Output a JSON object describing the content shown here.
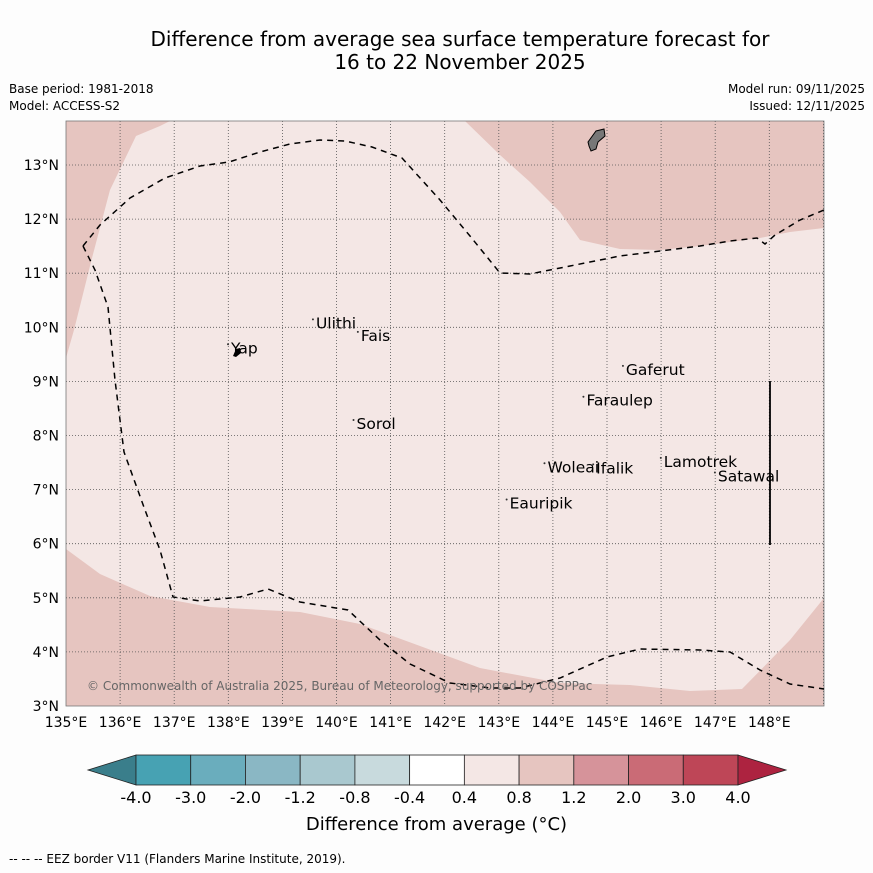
{
  "header": {
    "title_line1": "Difference from average sea surface temperature forecast for",
    "title_line2": "16 to 22 November 2025",
    "base_period": "Base period: 1981-2018",
    "model": "Model: ACCESS-S2",
    "model_run": "Model run: 09/11/2025",
    "issued": "Issued: 12/11/2025"
  },
  "map": {
    "lon_range": [
      135,
      149
    ],
    "lat_range": [
      3,
      13.8
    ],
    "lon_ticks": [
      "135°E",
      "136°E",
      "137°E",
      "138°E",
      "139°E",
      "140°E",
      "141°E",
      "142°E",
      "143°E",
      "144°E",
      "145°E",
      "146°E",
      "147°E",
      "148°E"
    ],
    "lat_ticks": [
      "3°N",
      "4°N",
      "5°N",
      "6°N",
      "7°N",
      "8°N",
      "9°N",
      "10°N",
      "11°N",
      "12°N",
      "13°N"
    ],
    "places": [
      {
        "name": "Yap",
        "lon": 138.05,
        "lat": 9.52
      },
      {
        "name": "Ulithi",
        "lon": 139.62,
        "lat": 9.98
      },
      {
        "name": "Fais",
        "lon": 140.45,
        "lat": 9.75
      },
      {
        "name": "Gaferut",
        "lon": 145.35,
        "lat": 9.12
      },
      {
        "name": "Faraulep",
        "lon": 144.62,
        "lat": 8.55
      },
      {
        "name": "Sorol",
        "lon": 140.37,
        "lat": 8.12
      },
      {
        "name": "Lamotrek",
        "lon": 146.05,
        "lat": 7.42
      },
      {
        "name": "Woleai",
        "lon": 143.9,
        "lat": 7.32
      },
      {
        "name": "Ifalik",
        "lon": 144.8,
        "lat": 7.3
      },
      {
        "name": "Satawal",
        "lon": 147.05,
        "lat": 7.15
      },
      {
        "name": "Eauripik",
        "lon": 143.2,
        "lat": 6.65
      }
    ],
    "copyright": "© Commonwealth of Australia 2025, Bureau of Meteorology, supported by COSPPac"
  },
  "colorbar": {
    "labels": [
      "-4.0",
      "-3.0",
      "-2.0",
      "-1.2",
      "-0.8",
      "-0.4",
      "0.4",
      "0.8",
      "1.2",
      "2.0",
      "3.0",
      "4.0"
    ],
    "colors": [
      "#3a7e8b",
      "#47a2b3",
      "#6aadbd",
      "#8ab7c4",
      "#a9c8cf",
      "#c8dadd",
      "#ffffff",
      "#f4e7e5",
      "#e6c5c0",
      "#d6939a",
      "#ca6b76",
      "#be4657",
      "#ad2340"
    ],
    "title": "Difference from average (°C)"
  },
  "footer": {
    "note": "--  --  -- EEZ border V11 (Flanders Marine Institute, 2019)."
  }
}
